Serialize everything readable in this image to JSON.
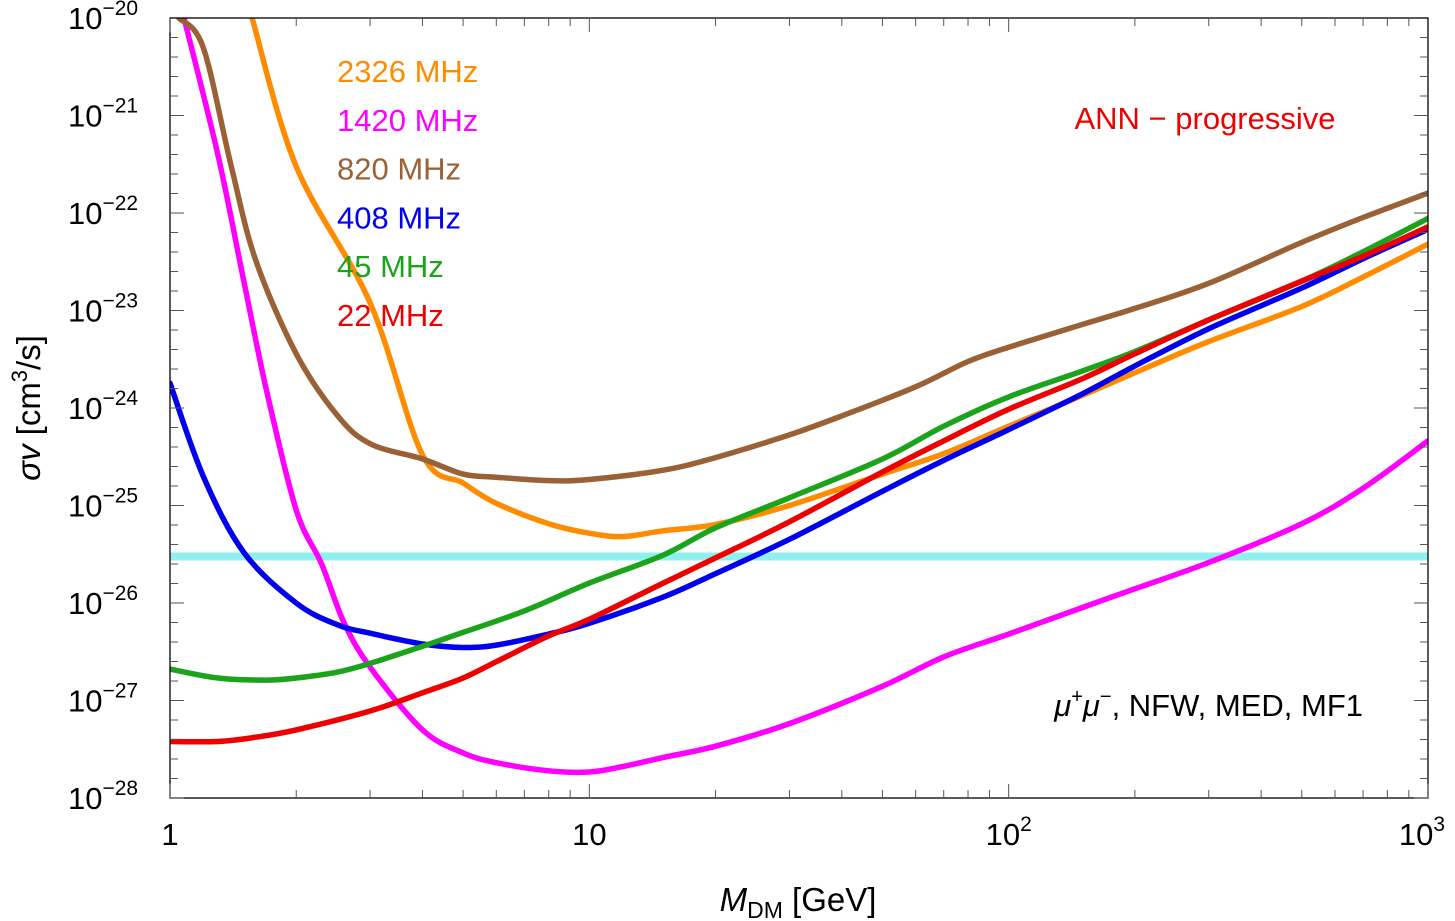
{
  "chart_data": {
    "type": "line",
    "x_scale": "log",
    "y_scale": "log",
    "xlim": [
      1,
      1000
    ],
    "ylim": [
      1e-28,
      1e-20
    ],
    "grid": false,
    "legend_position": "top-left",
    "x_ticks": [
      {
        "value": 1,
        "base": "1",
        "exp": ""
      },
      {
        "value": 10,
        "base": "10",
        "exp": ""
      },
      {
        "value": 100,
        "base": "10",
        "exp": "2"
      },
      {
        "value": 1000,
        "base": "10",
        "exp": "3"
      }
    ],
    "y_ticks": [
      {
        "value": 1e-28,
        "base": "10",
        "exp": "−28"
      },
      {
        "value": 1e-27,
        "base": "10",
        "exp": "−27"
      },
      {
        "value": 1e-26,
        "base": "10",
        "exp": "−26"
      },
      {
        "value": 1e-25,
        "base": "10",
        "exp": "−25"
      },
      {
        "value": 1e-24,
        "base": "10",
        "exp": "−24"
      },
      {
        "value": 1e-23,
        "base": "10",
        "exp": "−23"
      },
      {
        "value": 1e-22,
        "base": "10",
        "exp": "−22"
      },
      {
        "value": 1e-21,
        "base": "10",
        "exp": "−21"
      },
      {
        "value": 1e-20,
        "base": "10",
        "exp": "−20"
      }
    ],
    "xlabel": {
      "main": "M",
      "sub": "DM",
      "unit": " [GeV]"
    },
    "ylabel": {
      "sym": "σv",
      "pre": " [cm",
      "sup": "3",
      "post": "/s]"
    },
    "annotations": {
      "top": "ANN − progressive",
      "bottom": {
        "p1": "μ",
        "s1": "+",
        "p2": "μ",
        "s2": "−",
        "rest": ", NFW, MED, MF1"
      }
    },
    "reference_line": {
      "y": 3e-26,
      "color": "#8ff0f0"
    },
    "series": [
      {
        "name": "2326 MHz",
        "color": "#ff8c00",
        "x": [
          1.57,
          2.0,
          3.0,
          4.0,
          5.0,
          6.0,
          8.0,
          10.0,
          12.0,
          15.0,
          20.0,
          30.0,
          50.0,
          70.0,
          100.0,
          150.0,
          200.0,
          300.0,
          500.0,
          700.0,
          1000.0
        ],
        "y": [
          1e-20,
          3e-22,
          1.2e-23,
          3.3e-25,
          1.7e-25,
          1.05e-25,
          6.5e-26,
          5.2e-26,
          4.8e-26,
          5.5e-26,
          6.4e-26,
          1e-25,
          2.1e-25,
          3.4e-25,
          6.5e-25,
          1.35e-24,
          2.3e-24,
          4.8e-24,
          1.1e-23,
          2.2e-23,
          4.8e-23
        ]
      },
      {
        "name": "1420 MHz",
        "color": "#ff00ff",
        "x": [
          1.08,
          1.3,
          1.5,
          1.7,
          2.0,
          2.3,
          2.6,
          3.0,
          4.0,
          5.0,
          6.0,
          8.0,
          10.0,
          12.0,
          15.0,
          20.0,
          30.0,
          50.0,
          70.0,
          100.0,
          150.0,
          200.0,
          300.0,
          500.0,
          700.0,
          1000.0
        ],
        "y": [
          1e-20,
          4e-22,
          2e-23,
          1.5e-24,
          9e-26,
          2.5e-26,
          6.3e-27,
          2.2e-27,
          5e-28,
          2.9e-28,
          2.3e-28,
          1.9e-28,
          1.85e-28,
          2.1e-28,
          2.6e-28,
          3.4e-28,
          5.8e-28,
          1.4e-27,
          2.8e-27,
          4.8e-27,
          9e-27,
          1.4e-26,
          2.6e-26,
          6.5e-26,
          1.5e-25,
          4.6e-25
        ]
      },
      {
        "name": "820 MHz",
        "color": "#9a6136",
        "x": [
          1.05,
          1.2,
          1.4,
          1.6,
          2.0,
          2.5,
          3.0,
          4.0,
          5.0,
          6.0,
          8.0,
          10.0,
          15.0,
          20.0,
          30.0,
          40.0,
          60.0,
          80.0,
          100.0,
          150.0,
          200.0,
          300.0,
          500.0,
          700.0,
          1000.0
        ],
        "y": [
          1e-20,
          5e-21,
          3e-22,
          3.3e-23,
          3.6e-24,
          8.5e-25,
          4.3e-25,
          3e-25,
          2.1e-25,
          1.95e-25,
          1.8e-25,
          1.85e-25,
          2.3e-25,
          3.1e-25,
          5.3e-25,
          8.3e-25,
          1.65e-24,
          3e-24,
          4.2e-24,
          7.2e-24,
          1.05e-23,
          1.9e-23,
          5e-23,
          9e-23,
          1.6e-22
        ]
      },
      {
        "name": "408 MHz",
        "color": "#0000ee",
        "x": [
          1.0,
          1.2,
          1.5,
          2.0,
          2.5,
          3.0,
          4.0,
          5.0,
          6.0,
          8.0,
          10.0,
          15.0,
          20.0,
          30.0,
          50.0,
          70.0,
          100.0,
          150.0,
          200.0,
          300.0,
          500.0,
          700.0,
          1000.0
        ],
        "y": [
          1.8e-24,
          2e-25,
          3.3e-26,
          1e-26,
          6e-27,
          4.9e-27,
          3.8e-27,
          3.5e-27,
          3.7e-27,
          4.8e-27,
          6.2e-27,
          1.15e-26,
          2e-26,
          4.5e-26,
          1.4e-25,
          2.9e-25,
          6e-25,
          1.4e-24,
          2.7e-24,
          6.5e-24,
          1.7e-23,
          3.4e-23,
          6.8e-23
        ]
      },
      {
        "name": "45 MHz",
        "color": "#1ca31c",
        "x": [
          1.0,
          1.3,
          1.7,
          2.0,
          2.5,
          3.0,
          4.0,
          5.0,
          7.0,
          10.0,
          15.0,
          20.0,
          30.0,
          50.0,
          70.0,
          100.0,
          150.0,
          200.0,
          300.0,
          500.0,
          700.0,
          1000.0
        ],
        "y": [
          2.1e-27,
          1.7e-27,
          1.62e-27,
          1.7e-27,
          1.95e-27,
          2.4e-27,
          3.6e-27,
          5e-27,
          8.3e-27,
          1.6e-26,
          3.1e-26,
          5.9e-26,
          1.2e-25,
          3e-25,
          6.5e-25,
          1.3e-24,
          2.4e-24,
          3.8e-24,
          8e-24,
          2e-23,
          4e-23,
          8.8e-23
        ]
      },
      {
        "name": "22 MHz",
        "color": "#ee0000",
        "x": [
          1.0,
          1.3,
          1.6,
          2.0,
          3.0,
          4.0,
          5.0,
          6.0,
          8.0,
          10.0,
          15.0,
          20.0,
          30.0,
          50.0,
          70.0,
          100.0,
          150.0,
          200.0,
          300.0,
          500.0,
          700.0,
          1000.0
        ],
        "y": [
          3.8e-28,
          3.8e-28,
          4.2e-28,
          5e-28,
          7.8e-28,
          1.2e-27,
          1.7e-27,
          2.5e-27,
          4.6e-27,
          6.8e-27,
          1.6e-26,
          2.9e-26,
          6.8e-26,
          2.2e-25,
          4.6e-25,
          9.7e-25,
          2e-24,
          3.6e-24,
          8e-24,
          2e-23,
          3.6e-23,
          7.2e-23
        ]
      }
    ]
  }
}
